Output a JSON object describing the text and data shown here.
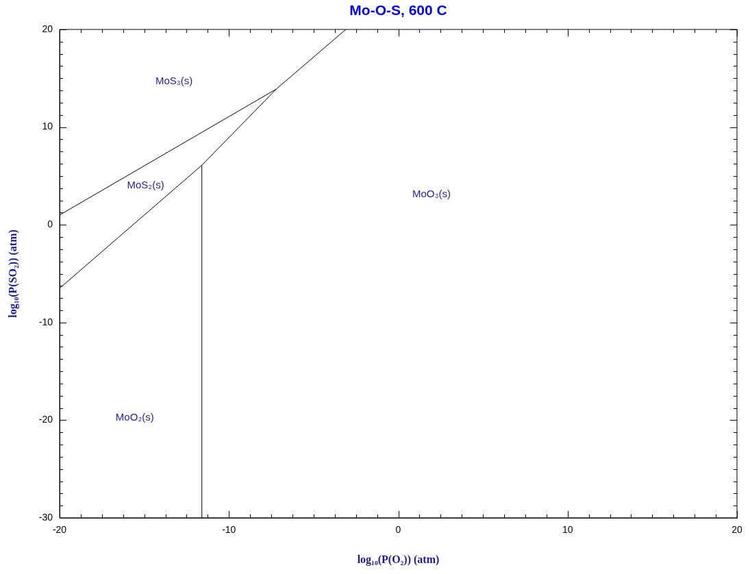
{
  "chart_data": {
    "type": "line",
    "title": "Mo-O-S, 600 C",
    "xlabel": "log₁₀(P(O₂)) (atm)",
    "ylabel": "log₁₀(P(SO₂)) (atm)",
    "series": [
      {
        "color": "#000000",
        "x": [
          -20,
          -7.2
        ],
        "values": [
          1,
          13.9
        ]
      },
      {
        "color": "#000000",
        "x": [
          -20,
          -11.6,
          -7.2,
          -3.1
        ],
        "values": [
          -6.5,
          6.1,
          13.9,
          20
        ]
      },
      {
        "color": "#000000",
        "x": [
          -11.6,
          -11.6
        ],
        "values": [
          -30,
          6.1
        ]
      }
    ],
    "xlim": [
      -20,
      20
    ],
    "ylim": [
      -30,
      20
    ],
    "xticks": [
      -20,
      {
        "value": -18.75,
        "label": null
      },
      {
        "value": -17.5,
        "label": null
      },
      {
        "value": -16.25,
        "label": null
      },
      {
        "value": -15,
        "label": null
      },
      {
        "value": -13.75,
        "label": null
      },
      {
        "value": -12.5,
        "label": null
      },
      {
        "value": -11.25,
        "label": null
      },
      -10,
      {
        "value": -8.75,
        "label": null
      },
      {
        "value": -7.5,
        "label": null
      },
      {
        "value": -6.25,
        "label": null
      },
      {
        "value": -5,
        "label": null
      },
      {
        "value": -3.75,
        "label": null
      },
      {
        "value": -2.5,
        "label": null
      },
      {
        "value": -1.25,
        "label": null
      },
      0,
      {
        "value": 1.25,
        "label": null
      },
      {
        "value": 2.5,
        "label": null
      },
      {
        "value": 3.75,
        "label": null
      },
      {
        "value": 5,
        "label": null
      },
      {
        "value": 6.25,
        "label": null
      },
      {
        "value": 7.5,
        "label": null
      },
      {
        "value": 8.75,
        "label": null
      },
      10,
      {
        "value": 11.25,
        "label": null
      },
      {
        "value": 12.5,
        "label": null
      },
      {
        "value": 13.75,
        "label": null
      },
      {
        "value": 15,
        "label": null
      },
      {
        "value": 16.25,
        "label": null
      },
      {
        "value": 17.5,
        "label": null
      },
      {
        "value": 18.75,
        "label": null
      },
      20
    ],
    "yticks": [
      -30,
      {
        "value": -28.75,
        "label": null
      },
      {
        "value": -27.5,
        "label": null
      },
      {
        "value": -26.25,
        "label": null
      },
      {
        "value": -25,
        "label": null
      },
      {
        "value": -23.75,
        "label": null
      },
      {
        "value": -22.5,
        "label": null
      },
      {
        "value": -21.25,
        "label": null
      },
      -20,
      {
        "value": -18.75,
        "label": null
      },
      {
        "value": -17.5,
        "label": null
      },
      {
        "value": -16.25,
        "label": null
      },
      {
        "value": -15,
        "label": null
      },
      {
        "value": -13.75,
        "label": null
      },
      {
        "value": -12.5,
        "label": null
      },
      {
        "value": -11.25,
        "label": null
      },
      -10,
      {
        "value": -8.75,
        "label": null
      },
      {
        "value": -7.5,
        "label": null
      },
      {
        "value": -6.25,
        "label": null
      },
      {
        "value": -5,
        "label": null
      },
      {
        "value": -3.75,
        "label": null
      },
      {
        "value": -2.5,
        "label": null
      },
      {
        "value": -1.25,
        "label": null
      },
      0,
      {
        "value": 1.25,
        "label": null
      },
      {
        "value": 2.5,
        "label": null
      },
      {
        "value": 3.75,
        "label": null
      },
      {
        "value": 5,
        "label": null
      },
      {
        "value": 6.25,
        "label": null
      },
      {
        "value": 7.5,
        "label": null
      },
      {
        "value": 8.75,
        "label": null
      },
      10,
      {
        "value": 11.25,
        "label": null
      },
      {
        "value": 12.5,
        "label": null
      },
      {
        "value": 13.75,
        "label": null
      },
      {
        "value": 15,
        "label": null
      },
      {
        "value": 16.25,
        "label": null
      },
      {
        "value": 17.5,
        "label": null
      },
      {
        "value": 18.75,
        "label": null
      },
      20
    ],
    "annotations": [
      "MoS₃(s)",
      "MoS₂(s)",
      "MoO₃(s)",
      "MoO₂(s)"
    ],
    "grid": false,
    "legend": false,
    "marker": "none",
    "line_style": "solid"
  }
}
